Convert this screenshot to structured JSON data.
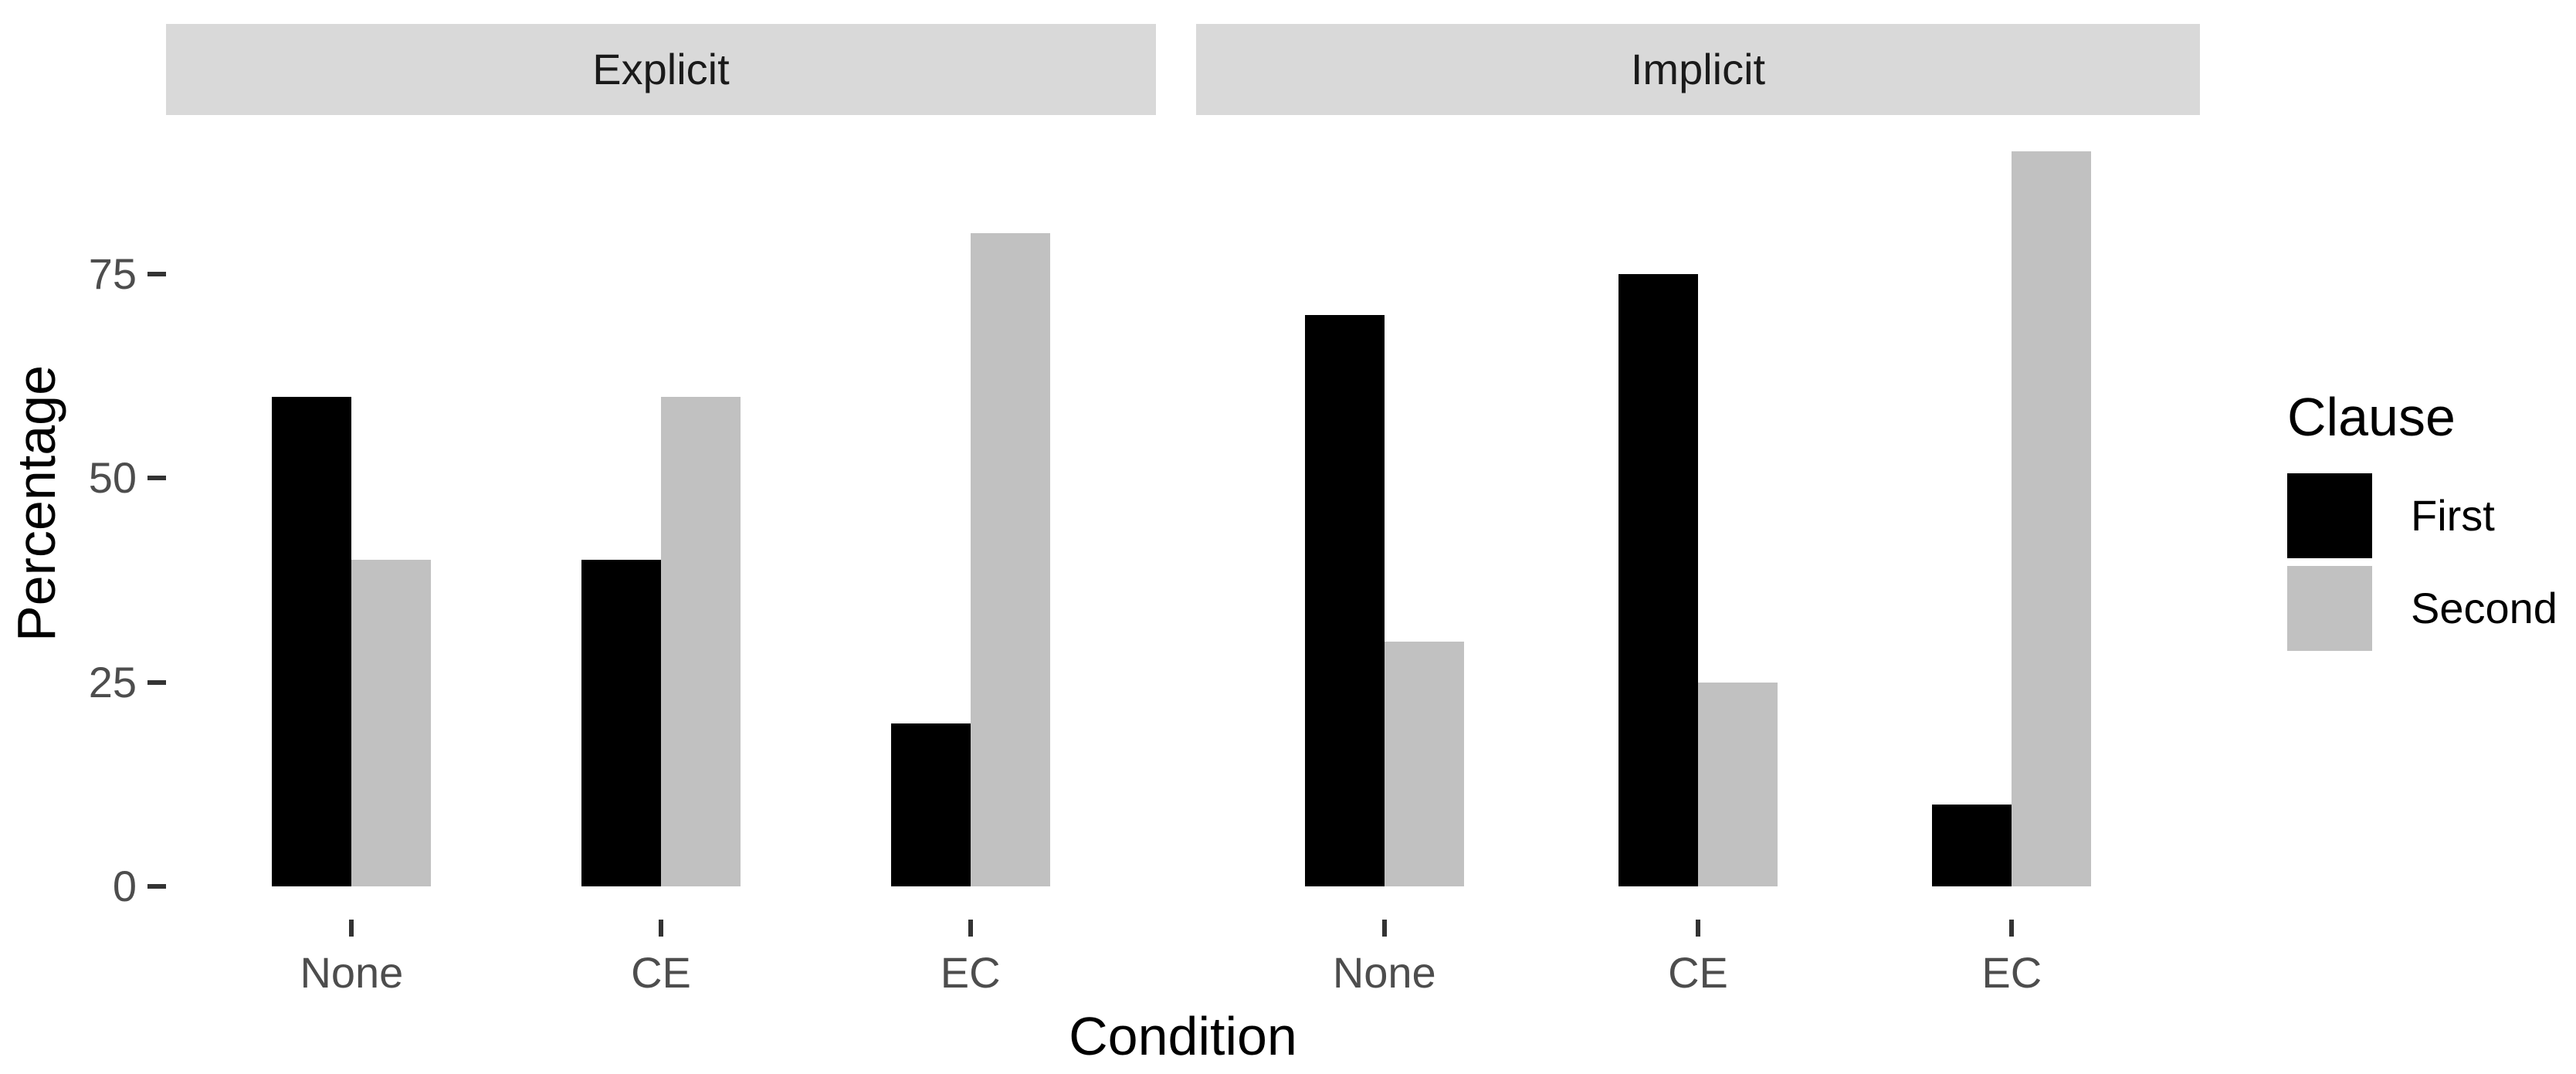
{
  "chart_data": {
    "type": "bar",
    "layout_style": "dodged bar chart, two facets side by side, no gridlines, white background",
    "facets": [
      {
        "label": "Explicit",
        "categories": [
          "None",
          "CE",
          "EC"
        ],
        "series": [
          {
            "name": "First",
            "values": [
              60,
              40,
              20
            ]
          },
          {
            "name": "Second",
            "values": [
              40,
              60,
              80
            ]
          }
        ]
      },
      {
        "label": "Implicit",
        "categories": [
          "None",
          "CE",
          "EC"
        ],
        "series": [
          {
            "name": "First",
            "values": [
              70,
              75,
              10
            ]
          },
          {
            "name": "Second",
            "values": [
              30,
              25,
              90
            ]
          }
        ]
      }
    ],
    "xlabel": "Condition",
    "ylabel": "Percentage",
    "yticks": [
      0,
      25,
      50,
      75
    ],
    "ylim": [
      0,
      90
    ],
    "grid": false,
    "legend": {
      "title": "Clause",
      "position": "right",
      "entries": [
        {
          "label": "First",
          "color": "#000000"
        },
        {
          "label": "Second",
          "color": "#c1c1c1"
        }
      ]
    },
    "colors": {
      "series_first": "#000000",
      "series_second": "#c1c1c1",
      "strip_background": "#d9d9d9",
      "strip_text": "#1a1a1a",
      "axis_tick_text": "#4d4d4d",
      "tick_mark": "#333333",
      "axis_title_text": "#000000",
      "plot_background": "#ffffff"
    }
  }
}
